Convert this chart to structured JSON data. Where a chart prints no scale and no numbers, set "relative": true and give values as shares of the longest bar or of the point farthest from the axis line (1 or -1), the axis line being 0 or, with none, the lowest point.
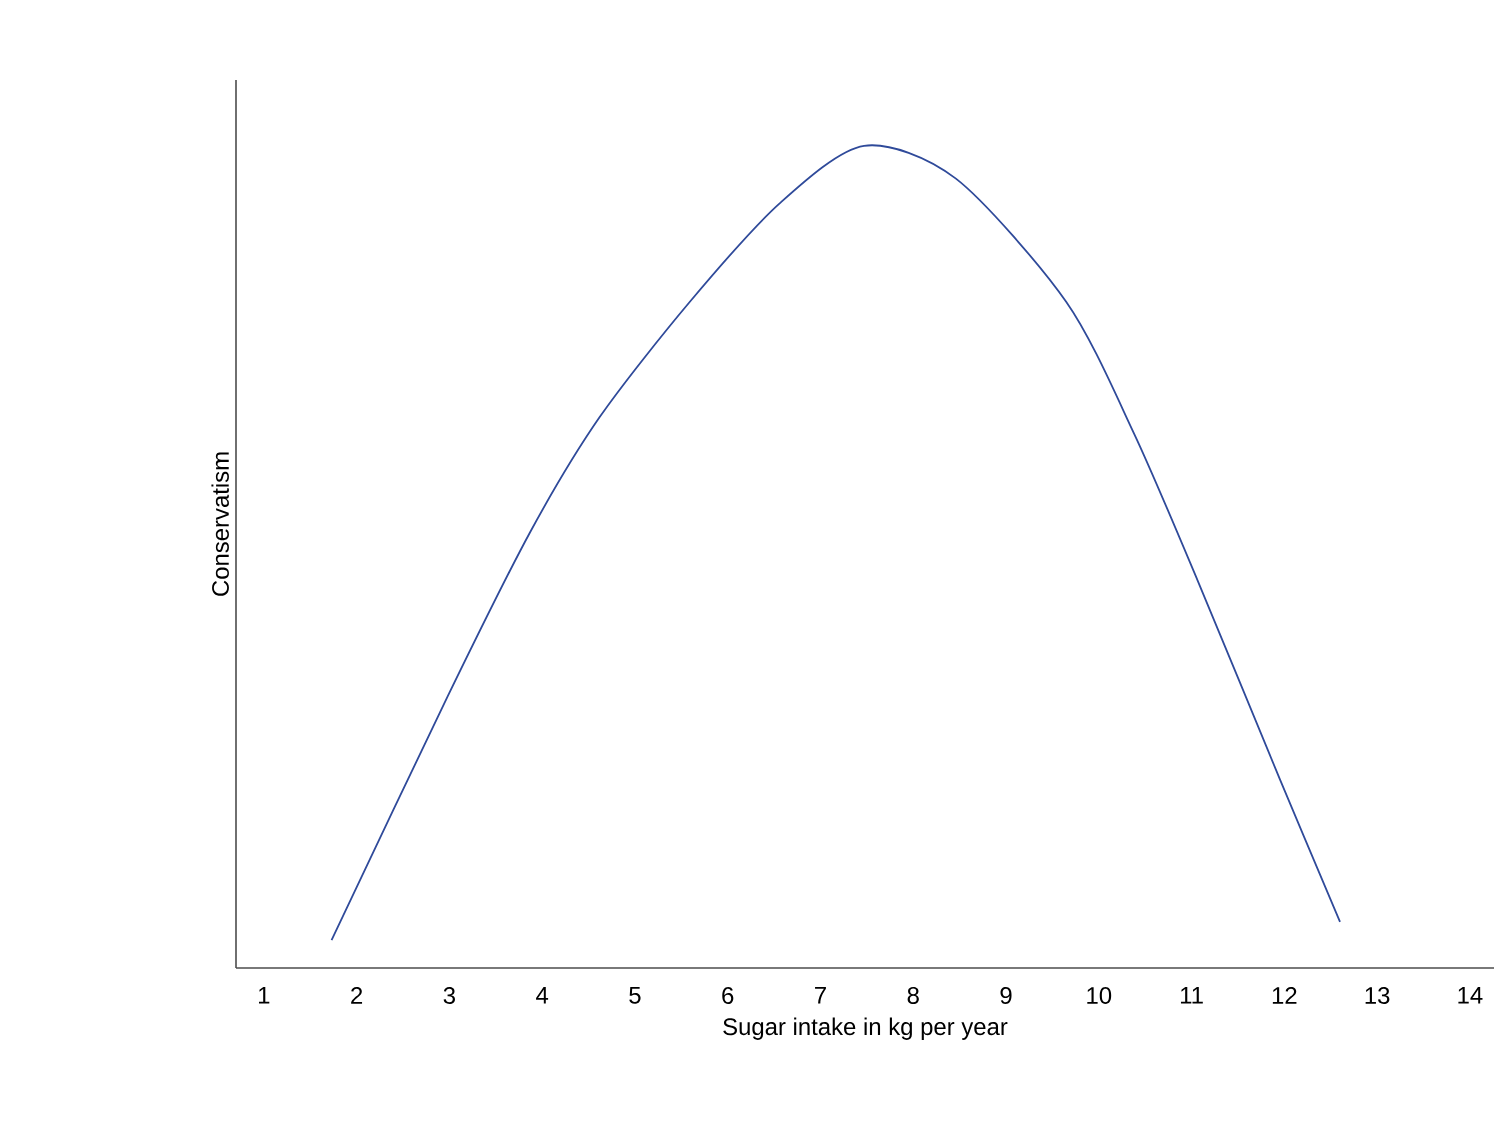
{
  "chart_data": {
    "type": "line",
    "relative": true,
    "xlabel": "Sugar intake in kg per year",
    "ylabel": "Conservatism",
    "xlim": [
      0.7,
      14.26
    ],
    "xticks": [
      1,
      2,
      3,
      4,
      5,
      6,
      7,
      8,
      9,
      10,
      11,
      12,
      13,
      14
    ],
    "grid": false,
    "series": [
      {
        "color": "#2f4a9a",
        "x": [
          1.73,
          2.98,
          3.87,
          4.62,
          5.59,
          6.56,
          7.47,
          8.46,
          9.65,
          10.38,
          11.07,
          11.95,
          12.6
        ],
        "values": [
          0.034,
          0.33,
          0.53,
          0.67,
          0.81,
          0.93,
          1,
          0.96,
          0.81,
          0.65,
          0.47,
          0.23,
          0.056
        ]
      }
    ]
  }
}
